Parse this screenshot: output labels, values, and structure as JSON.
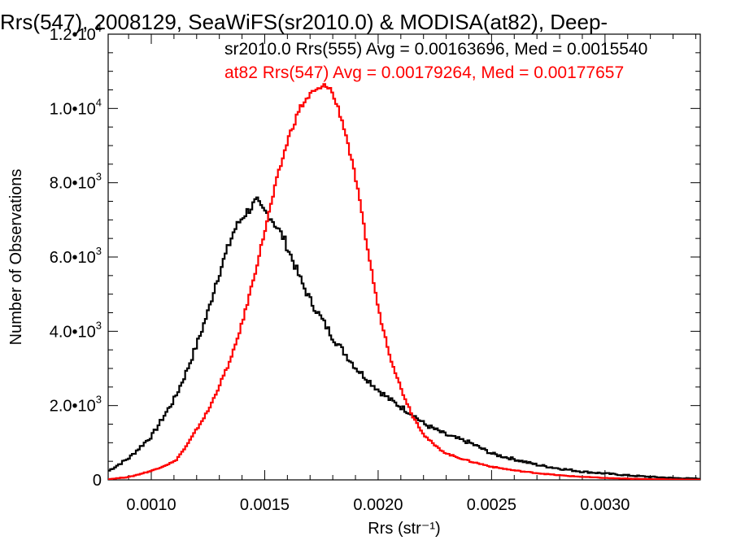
{
  "chart_data": {
    "type": "line",
    "title": "Rrs(547), 2008129, SeaWiFS(sr2010.0) & MODISA(at82), Deep-",
    "xlabel": "Rrs (str⁻¹)",
    "ylabel": "Number of Observations",
    "xlim": [
      0.00081,
      0.00342
    ],
    "ylim": [
      0,
      12000
    ],
    "x_ticks": [
      "0.0010",
      "0.0015",
      "0.0020",
      "0.0025",
      "0.0030"
    ],
    "x_tick_values": [
      0.001,
      0.0015,
      0.002,
      0.0025,
      0.003
    ],
    "y_ticks": [
      {
        "value": 0,
        "mantissa": "0",
        "exponent": ""
      },
      {
        "value": 2000,
        "mantissa": "2.0•10",
        "exponent": "3"
      },
      {
        "value": 4000,
        "mantissa": "4.0•10",
        "exponent": "3"
      },
      {
        "value": 6000,
        "mantissa": "6.0•10",
        "exponent": "3"
      },
      {
        "value": 8000,
        "mantissa": "8.0•10",
        "exponent": "3"
      },
      {
        "value": 10000,
        "mantissa": "1.0•10",
        "exponent": "4"
      },
      {
        "value": 12000,
        "mantissa": "1.2•10",
        "exponent": "4"
      }
    ],
    "annotations": [
      {
        "text": "sr2010.0 Rrs(555) Avg = 0.00163696, Med = 0.0015540",
        "color": "#000000"
      },
      {
        "text": "at82 Rrs(547) Avg = 0.00179264, Med = 0.00177657",
        "color": "#ff0000"
      }
    ],
    "series": [
      {
        "color": "#000000",
        "x": [
          0.00081,
          0.0009,
          0.001,
          0.00105,
          0.0011,
          0.00115,
          0.0012,
          0.00125,
          0.00128,
          0.00132,
          0.00136,
          0.0014,
          0.00143,
          0.00146,
          0.00148,
          0.0015,
          0.00152,
          0.00155,
          0.00158,
          0.00162,
          0.00166,
          0.0017,
          0.00175,
          0.0018,
          0.00185,
          0.0019,
          0.00195,
          0.002,
          0.00205,
          0.0021,
          0.00215,
          0.0022,
          0.0023,
          0.0024,
          0.0025,
          0.0026,
          0.0027,
          0.0028,
          0.0029,
          0.003,
          0.0031,
          0.0032,
          0.0033,
          0.00342
        ],
        "y": [
          250,
          600,
          1200,
          1700,
          2200,
          2900,
          3700,
          4600,
          5300,
          6000,
          6700,
          7100,
          7300,
          7500,
          7300,
          7200,
          7100,
          6800,
          6500,
          5900,
          5300,
          4800,
          4300,
          3800,
          3400,
          3000,
          2700,
          2400,
          2150,
          1950,
          1750,
          1500,
          1200,
          1000,
          700,
          550,
          400,
          300,
          220,
          170,
          120,
          80,
          50,
          30
        ]
      },
      {
        "color": "#ff0000",
        "x": [
          0.00081,
          0.0009,
          0.001,
          0.0011,
          0.00115,
          0.0012,
          0.00125,
          0.0013,
          0.00135,
          0.0014,
          0.00145,
          0.0015,
          0.00155,
          0.0016,
          0.00165,
          0.0017,
          0.00173,
          0.00176,
          0.00178,
          0.0018,
          0.00182,
          0.00185,
          0.0019,
          0.00195,
          0.002,
          0.00205,
          0.0021,
          0.00215,
          0.0022,
          0.00225,
          0.0023,
          0.0024,
          0.0025,
          0.0026,
          0.0027,
          0.0028,
          0.0029,
          0.003,
          0.0031,
          0.0032,
          0.0033,
          0.00342
        ],
        "y": [
          20,
          80,
          250,
          500,
          900,
          1400,
          1900,
          2600,
          3300,
          4300,
          5500,
          6800,
          8100,
          9200,
          10000,
          10400,
          10500,
          10600,
          10600,
          10300,
          10000,
          9400,
          8000,
          6200,
          4500,
          3300,
          2400,
          1700,
          1200,
          900,
          700,
          500,
          350,
          250,
          180,
          120,
          80,
          50,
          30,
          20,
          10,
          5
        ]
      }
    ]
  }
}
